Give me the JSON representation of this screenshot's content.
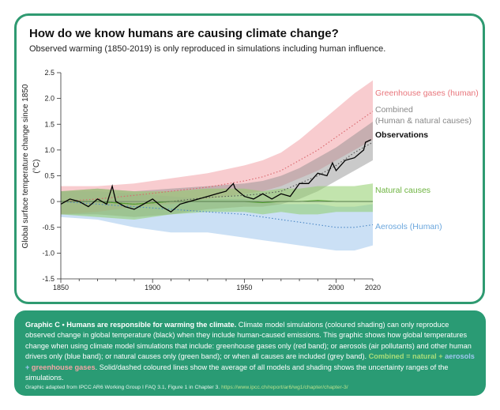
{
  "title": "How do we know humans are causing climate change?",
  "subtitle": "Observed warming (1850-2019) is only reproduced in simulations including human influence.",
  "colors": {
    "ghg": "#f2a3a8",
    "combined": "#8a8a8a",
    "natural": "#8fce6a",
    "aerosols": "#a8ccef",
    "observations": "#000000",
    "frame": "#2f9a71"
  },
  "caption": {
    "heading": "Graphic C • Humans are responsible for warming the climate.",
    "text1": " Climate model simulations (coloured shading) can only reproduce observed change in global temperature (black) when they include human-caused emissions. This graphic shows how global temperatures change when using climate model simulations that include: greenhouse gases only (red band); or aerosols (air pollutants) and other human drivers only (blue band); or natural causes only (green band); or when all causes are included (grey band). ",
    "combined_label": "Combined = ",
    "natural_word": "natural",
    "plus1": " + ",
    "aerosols_word": "aerosols",
    "plus2": " + ",
    "ghg_word": "greenhouse gases",
    "text2": ". Solid/dashed coloured lines show the average of all models and shading shows the uncertainty ranges of the simulations.",
    "source": "Graphic adapted from IPCC AR6 Working Group I FAQ 3.1, Figure 1 in Chapter 3. ",
    "source_url": "https://www.ipcc.ch/report/ar6/wg1/chapter/chapter-3/"
  },
  "chart_data": {
    "type": "line",
    "ylabel": "Global surface temperature change since 1850 (°C)",
    "xlim": [
      1850,
      2020
    ],
    "ylim": [
      -1.5,
      2.5
    ],
    "x_ticks": [
      1850,
      1900,
      1950,
      2000,
      2020
    ],
    "y_ticks": [
      -1.5,
      -1.0,
      -0.5,
      0,
      0.5,
      1.0,
      1.5,
      2.0,
      2.5
    ],
    "y_tick_labels": [
      "-1.5",
      "-1.0",
      "-0.5",
      "0",
      "0.5",
      "1.0",
      "1.5",
      "2.0",
      "2.5"
    ],
    "bands": [
      {
        "name": "Greenhouse gases (human)",
        "x": [
          1850,
          1870,
          1890,
          1910,
          1930,
          1950,
          1960,
          1970,
          1980,
          1990,
          2000,
          2010,
          2020
        ],
        "mean": [
          0.0,
          0.05,
          0.12,
          0.2,
          0.28,
          0.4,
          0.48,
          0.6,
          0.8,
          1.0,
          1.25,
          1.5,
          1.75
        ],
        "low": [
          -0.25,
          -0.2,
          -0.1,
          -0.05,
          0.05,
          0.15,
          0.2,
          0.3,
          0.45,
          0.6,
          0.8,
          1.0,
          1.2
        ],
        "high": [
          0.3,
          0.3,
          0.35,
          0.45,
          0.55,
          0.7,
          0.8,
          0.95,
          1.2,
          1.5,
          1.8,
          2.1,
          2.35
        ]
      },
      {
        "name": "Combined (Human & natural causes)",
        "x": [
          1850,
          1870,
          1890,
          1910,
          1930,
          1950,
          1960,
          1970,
          1980,
          1990,
          2000,
          2010,
          2020
        ],
        "mean": [
          0.0,
          0.0,
          -0.05,
          0.0,
          0.08,
          0.12,
          0.15,
          0.2,
          0.35,
          0.5,
          0.7,
          0.95,
          1.15
        ],
        "low": [
          -0.25,
          -0.25,
          -0.3,
          -0.25,
          -0.15,
          -0.1,
          -0.1,
          -0.05,
          0.05,
          0.2,
          0.4,
          0.6,
          0.8
        ],
        "high": [
          0.2,
          0.25,
          0.2,
          0.25,
          0.3,
          0.35,
          0.4,
          0.5,
          0.65,
          0.85,
          1.05,
          1.3,
          1.55
        ]
      },
      {
        "name": "Natural causes",
        "x": [
          1850,
          1870,
          1890,
          1910,
          1930,
          1950,
          1960,
          1970,
          1980,
          1990,
          2000,
          2010,
          2020
        ],
        "mean": [
          0.0,
          0.0,
          -0.05,
          0.0,
          0.0,
          0.0,
          -0.02,
          0.0,
          0.0,
          0.02,
          0.0,
          0.0,
          0.0
        ],
        "low": [
          -0.25,
          -0.3,
          -0.35,
          -0.25,
          -0.2,
          -0.2,
          -0.25,
          -0.2,
          -0.25,
          -0.25,
          -0.2,
          -0.2,
          -0.2
        ],
        "high": [
          0.2,
          0.25,
          0.2,
          0.2,
          0.25,
          0.25,
          0.2,
          0.25,
          0.25,
          0.3,
          0.3,
          0.3,
          0.35
        ]
      },
      {
        "name": "Aerosols (Human)",
        "x": [
          1850,
          1870,
          1890,
          1910,
          1930,
          1950,
          1960,
          1970,
          1980,
          1990,
          2000,
          2010,
          2020
        ],
        "mean": [
          0.0,
          -0.05,
          -0.1,
          -0.15,
          -0.2,
          -0.25,
          -0.3,
          -0.35,
          -0.4,
          -0.45,
          -0.5,
          -0.5,
          -0.45
        ],
        "low": [
          -0.3,
          -0.35,
          -0.5,
          -0.6,
          -0.6,
          -0.7,
          -0.75,
          -0.8,
          -0.85,
          -0.9,
          -0.95,
          -0.95,
          -0.85
        ],
        "high": [
          0.2,
          0.2,
          0.15,
          0.1,
          0.05,
          0.05,
          0.0,
          -0.05,
          -0.05,
          -0.05,
          -0.1,
          -0.1,
          -0.05
        ]
      }
    ],
    "observations": {
      "name": "Observations",
      "x": [
        1850,
        1855,
        1860,
        1865,
        1870,
        1875,
        1878,
        1880,
        1885,
        1890,
        1895,
        1900,
        1905,
        1910,
        1915,
        1920,
        1925,
        1930,
        1935,
        1940,
        1944,
        1945,
        1950,
        1955,
        1960,
        1965,
        1970,
        1975,
        1980,
        1985,
        1990,
        1995,
        1998,
        2000,
        2005,
        2010,
        2015,
        2016,
        2019
      ],
      "y": [
        -0.05,
        0.05,
        0.0,
        -0.1,
        0.05,
        -0.05,
        0.3,
        0.0,
        -0.1,
        -0.15,
        -0.05,
        0.05,
        -0.1,
        -0.2,
        -0.05,
        0.0,
        0.05,
        0.1,
        0.15,
        0.2,
        0.35,
        0.25,
        0.1,
        0.05,
        0.15,
        0.05,
        0.15,
        0.1,
        0.35,
        0.35,
        0.55,
        0.5,
        0.75,
        0.6,
        0.8,
        0.85,
        1.0,
        1.15,
        1.2
      ]
    },
    "legend": [
      {
        "label": "Greenhouse gases (human)",
        "color": "#e8757b"
      },
      {
        "label": "Combined",
        "label2": "(Human & natural causes)",
        "color": "#888888"
      },
      {
        "label": "Observations",
        "color": "#111111"
      },
      {
        "label": "Natural causes",
        "color": "#6db33f"
      },
      {
        "label": "Aerosols (Human)",
        "color": "#6aa6dd"
      }
    ]
  }
}
